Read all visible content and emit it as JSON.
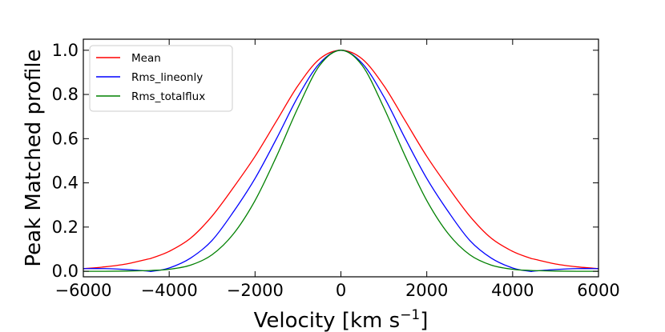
{
  "chart_data": {
    "type": "line",
    "title": "",
    "xlabel_main": "Velocity [km s",
    "xlabel_sup": "−1",
    "xlabel_end": "]",
    "ylabel": "Peak Matched profile",
    "xlim": [
      -6000,
      6000
    ],
    "ylim": [
      -0.025,
      1.05
    ],
    "xticks": [
      -6000,
      -4000,
      -2000,
      0,
      2000,
      4000,
      6000
    ],
    "xtick_labels": [
      "−6000",
      "−4000",
      "−2000",
      "0",
      "2000",
      "4000",
      "6000"
    ],
    "yticks": [
      0.0,
      0.2,
      0.4,
      0.6,
      0.8,
      1.0
    ],
    "ytick_labels": [
      "0.0",
      "0.2",
      "0.4",
      "0.6",
      "0.8",
      "1.0"
    ],
    "legend_position": "top-left",
    "x": [
      -6000,
      -5500,
      -5000,
      -4500,
      -4400,
      -4000,
      -3500,
      -3000,
      -2500,
      -2000,
      -1500,
      -1000,
      -500,
      0,
      500,
      1000,
      1500,
      2000,
      2500,
      3000,
      3500,
      4000,
      4400,
      4500,
      5000,
      5500,
      6000
    ],
    "series": [
      {
        "name": "Mean",
        "color": "#ff0000",
        "values": [
          0.012,
          0.02,
          0.033,
          0.055,
          0.06,
          0.09,
          0.15,
          0.25,
          0.38,
          0.52,
          0.68,
          0.84,
          0.96,
          1.0,
          0.96,
          0.84,
          0.68,
          0.52,
          0.38,
          0.25,
          0.15,
          0.09,
          0.06,
          0.055,
          0.033,
          0.02,
          0.012
        ]
      },
      {
        "name": "Rms_lineonly",
        "color": "#0000ff",
        "values": [
          0.012,
          0.012,
          0.008,
          0.001,
          0.0,
          0.015,
          0.06,
          0.14,
          0.27,
          0.42,
          0.6,
          0.79,
          0.94,
          1.0,
          0.94,
          0.79,
          0.6,
          0.42,
          0.27,
          0.14,
          0.06,
          0.015,
          0.0,
          0.001,
          0.008,
          0.012,
          0.012
        ]
      },
      {
        "name": "Rms_totalflux",
        "color": "#008000",
        "values": [
          0.0,
          0.0,
          0.001,
          0.003,
          0.004,
          0.009,
          0.028,
          0.075,
          0.17,
          0.32,
          0.52,
          0.74,
          0.93,
          1.0,
          0.93,
          0.74,
          0.52,
          0.32,
          0.17,
          0.075,
          0.028,
          0.009,
          0.004,
          0.003,
          0.001,
          0.0,
          0.0
        ]
      }
    ]
  }
}
